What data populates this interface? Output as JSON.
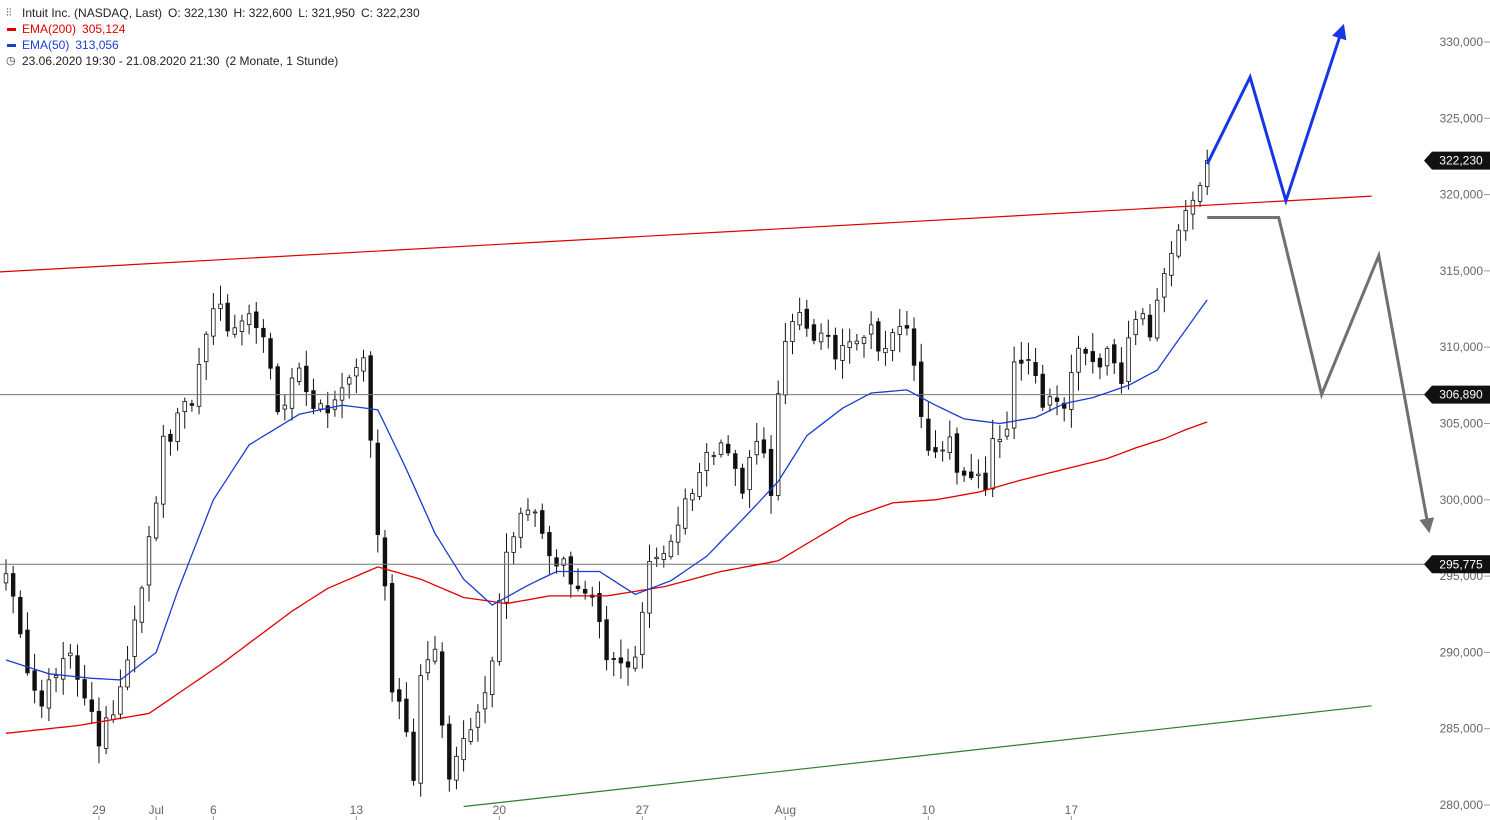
{
  "legend": {
    "instrument": "Intuit Inc. (NASDAQ, Last)",
    "ohlc": {
      "o_label": "O:",
      "o": "322,130",
      "h_label": "H:",
      "h": "322,600",
      "l_label": "L:",
      "l": "321,950",
      "c_label": "C:",
      "c": "322,230"
    },
    "ema200_label": "EMA(200)",
    "ema200_value": "305,124",
    "ema200_color": "#e00000",
    "ema50_label": "EMA(50)",
    "ema50_value": "313,056",
    "ema50_color": "#1a3ccf",
    "period": "23.06.2020 19:30 - 21.08.2020 21:30",
    "period_detail": "(2 Monate, 1 Stunde)"
  },
  "chart_data": {
    "type": "candlestick",
    "y_ticks": [
      "330,000",
      "325,000",
      "320,000",
      "315,000",
      "310,000",
      "305,000",
      "300,000",
      "295,000",
      "290,000",
      "285,000",
      "280,000"
    ],
    "y_tick_values": [
      330,
      325,
      320,
      315,
      310,
      305,
      300,
      295,
      290,
      285,
      280
    ],
    "x_ticks": [
      "29",
      "Jul",
      "6",
      "13",
      "20",
      "27",
      "Aug",
      "10",
      "17"
    ],
    "x_tick_index": [
      13,
      21,
      29,
      49,
      69,
      89,
      109,
      129,
      149
    ],
    "bars_per_day": 7,
    "ylim": [
      280,
      331
    ],
    "last_price": {
      "label": "322,230",
      "value": 322.23
    },
    "levels": [
      {
        "label": "306,890",
        "value": 306.89
      },
      {
        "label": "295,775",
        "value": 295.775
      }
    ],
    "anchors": [
      [
        0,
        295.8
      ],
      [
        2,
        290.5
      ],
      [
        5,
        287.2
      ],
      [
        9,
        289.5
      ],
      [
        12,
        286.5
      ],
      [
        13,
        283.4
      ],
      [
        16,
        288.0
      ],
      [
        20,
        297.0
      ],
      [
        22,
        303.5
      ],
      [
        26,
        306.5
      ],
      [
        29,
        313.0
      ],
      [
        32,
        310.5
      ],
      [
        35,
        312.0
      ],
      [
        38,
        306.0
      ],
      [
        41,
        308.5
      ],
      [
        44,
        305.5
      ],
      [
        47,
        307.0
      ],
      [
        50,
        309.5
      ],
      [
        52,
        298.0
      ],
      [
        53,
        294.0
      ],
      [
        54,
        288.0
      ],
      [
        56,
        285.5
      ],
      [
        57,
        281.5
      ],
      [
        58,
        289.0
      ],
      [
        60,
        289.5
      ],
      [
        62,
        281.5
      ],
      [
        64,
        285.0
      ],
      [
        66,
        286.0
      ],
      [
        68,
        290.0
      ],
      [
        70,
        297.0
      ],
      [
        73,
        300.0
      ],
      [
        76,
        296.5
      ],
      [
        79,
        295.0
      ],
      [
        82,
        293.0
      ],
      [
        84,
        289.5
      ],
      [
        86,
        289.0
      ],
      [
        88,
        290.0
      ],
      [
        90,
        295.5
      ],
      [
        93,
        297.5
      ],
      [
        96,
        301.0
      ],
      [
        100,
        304.5
      ],
      [
        103,
        300.5
      ],
      [
        105,
        304.5
      ],
      [
        107,
        301.0
      ],
      [
        108,
        306.5
      ],
      [
        109,
        310.0
      ],
      [
        111,
        312.0
      ],
      [
        114,
        310.5
      ],
      [
        116,
        309.5
      ],
      [
        118,
        311.0
      ],
      [
        121,
        311.0
      ],
      [
        123,
        310.0
      ],
      [
        126,
        311.5
      ],
      [
        127,
        308.5
      ],
      [
        128,
        306.0
      ],
      [
        129,
        304.0
      ],
      [
        130,
        302.5
      ],
      [
        132,
        303.5
      ],
      [
        134,
        301.0
      ],
      [
        136,
        302.0
      ],
      [
        137,
        301.0
      ],
      [
        138,
        303.5
      ],
      [
        140,
        304.0
      ],
      [
        141,
        309.0
      ],
      [
        143,
        308.5
      ],
      [
        145,
        306.5
      ],
      [
        148,
        306.0
      ],
      [
        150,
        310.0
      ],
      [
        152,
        308.5
      ],
      [
        154,
        310.5
      ],
      [
        156,
        308.0
      ],
      [
        158,
        312.5
      ],
      [
        160,
        310.5
      ],
      [
        162,
        315.5
      ],
      [
        164,
        318.0
      ],
      [
        165,
        319.5
      ],
      [
        167,
        321.0
      ],
      [
        168,
        322.23
      ]
    ],
    "ema50_anchors": [
      [
        0,
        289.5
      ],
      [
        6,
        288.6
      ],
      [
        12,
        288.3
      ],
      [
        16,
        288.2
      ],
      [
        21,
        290.0
      ],
      [
        24,
        294.0
      ],
      [
        29,
        300.0
      ],
      [
        34,
        303.6
      ],
      [
        41,
        305.6
      ],
      [
        47,
        306.2
      ],
      [
        52,
        305.9
      ],
      [
        56,
        302.0
      ],
      [
        60,
        297.8
      ],
      [
        64,
        294.8
      ],
      [
        68,
        293.1
      ],
      [
        73,
        294.4
      ],
      [
        77,
        295.3
      ],
      [
        83,
        295.3
      ],
      [
        88,
        293.8
      ],
      [
        93,
        294.7
      ],
      [
        98,
        296.3
      ],
      [
        104,
        299.2
      ],
      [
        108,
        301.2
      ],
      [
        112,
        304.2
      ],
      [
        117,
        306.0
      ],
      [
        121,
        307.0
      ],
      [
        126,
        307.2
      ],
      [
        130,
        306.2
      ],
      [
        134,
        305.3
      ],
      [
        139,
        305.0
      ],
      [
        144,
        305.4
      ],
      [
        148,
        306.3
      ],
      [
        152,
        306.7
      ],
      [
        157,
        307.5
      ],
      [
        161,
        308.5
      ],
      [
        164,
        310.5
      ],
      [
        168,
        313.1
      ]
    ],
    "ema200_anchors": [
      [
        0,
        284.7
      ],
      [
        10,
        285.2
      ],
      [
        20,
        286.0
      ],
      [
        30,
        289.2
      ],
      [
        40,
        292.7
      ],
      [
        45,
        294.2
      ],
      [
        52,
        295.6
      ],
      [
        58,
        294.8
      ],
      [
        64,
        293.6
      ],
      [
        70,
        293.2
      ],
      [
        76,
        293.7
      ],
      [
        84,
        293.7
      ],
      [
        92,
        294.3
      ],
      [
        100,
        295.3
      ],
      [
        108,
        296.0
      ],
      [
        113,
        297.4
      ],
      [
        118,
        298.8
      ],
      [
        124,
        299.8
      ],
      [
        130,
        300.0
      ],
      [
        136,
        300.5
      ],
      [
        142,
        301.3
      ],
      [
        148,
        302.0
      ],
      [
        154,
        302.7
      ],
      [
        158,
        303.4
      ],
      [
        162,
        304.0
      ],
      [
        165,
        304.6
      ],
      [
        168,
        305.1
      ]
    ],
    "trendlines": [
      {
        "color": "#e00000",
        "p1": [
          -6,
          314.8
        ],
        "p2": [
          191,
          319.9
        ]
      },
      {
        "color": "#2f7d2f",
        "p1": [
          64,
          279.9
        ],
        "p2": [
          191,
          286.5
        ]
      }
    ],
    "scenario_bullish": {
      "color": "#1536e6",
      "points": [
        [
          168,
          322.0
        ],
        [
          174,
          327.7
        ],
        [
          179,
          319.6
        ],
        [
          187,
          331.0
        ]
      ]
    },
    "scenario_bearish": {
      "color": "#707070",
      "points": [
        [
          168,
          318.5
        ],
        [
          178,
          318.5
        ],
        [
          184,
          306.9
        ],
        [
          192,
          316.0
        ],
        [
          199,
          298.0
        ]
      ]
    }
  }
}
